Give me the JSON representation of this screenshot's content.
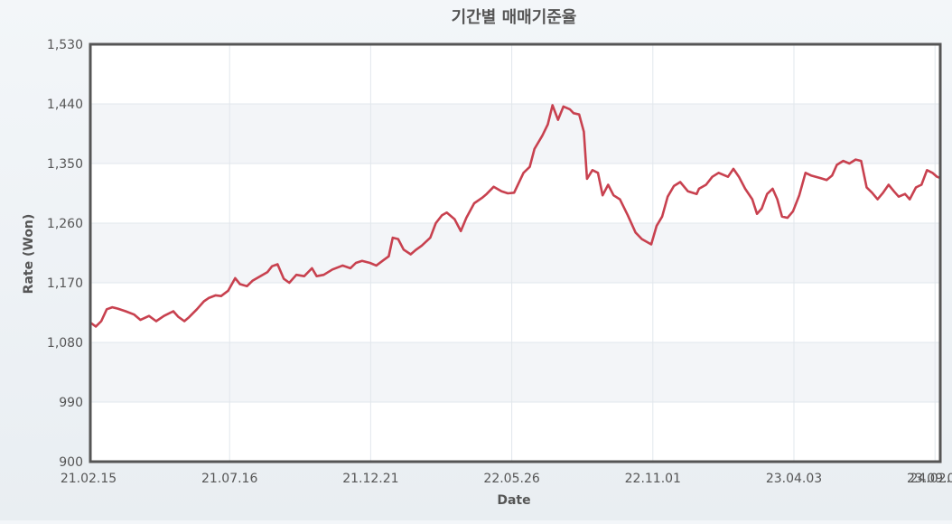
{
  "chart_data": {
    "type": "line",
    "title": "기간별 매매기준율",
    "xlabel": "Date",
    "ylabel": "Rate (Won)",
    "ylim": [
      900,
      1530
    ],
    "y_ticks": [
      "900",
      "990",
      "1,080",
      "1,170",
      "1,260",
      "1,350",
      "1,440",
      "1,530"
    ],
    "y_tick_values": [
      900,
      990,
      1080,
      1170,
      1260,
      1350,
      1440,
      1530
    ],
    "x_ticks": [
      "21.02.15",
      "21.07.16",
      "21.12.21",
      "22.05.26",
      "22.11.01",
      "23.04.03",
      "23.09.05",
      "24.02."
    ],
    "x_range": [
      "2021-02-15",
      "2024-02-05"
    ],
    "grid": true,
    "series": [
      {
        "color": "#c8414f",
        "points": [
          [
            "2021-02-15",
            1110
          ],
          [
            "2021-02-22",
            1104
          ],
          [
            "2021-03-01",
            1112
          ],
          [
            "2021-03-08",
            1130
          ],
          [
            "2021-03-15",
            1133
          ],
          [
            "2021-03-22",
            1131
          ],
          [
            "2021-04-01",
            1127
          ],
          [
            "2021-04-12",
            1122
          ],
          [
            "2021-04-20",
            1114
          ],
          [
            "2021-05-01",
            1120
          ],
          [
            "2021-05-10",
            1112
          ],
          [
            "2021-05-20",
            1120
          ],
          [
            "2021-06-01",
            1127
          ],
          [
            "2021-06-07",
            1119
          ],
          [
            "2021-06-15",
            1112
          ],
          [
            "2021-06-21",
            1118
          ],
          [
            "2021-07-01",
            1130
          ],
          [
            "2021-07-10",
            1142
          ],
          [
            "2021-07-16",
            1147
          ],
          [
            "2021-07-25",
            1151
          ],
          [
            "2021-08-01",
            1150
          ],
          [
            "2021-08-10",
            1158
          ],
          [
            "2021-08-19",
            1177
          ],
          [
            "2021-08-25",
            1168
          ],
          [
            "2021-09-03",
            1165
          ],
          [
            "2021-09-10",
            1173
          ],
          [
            "2021-09-20",
            1180
          ],
          [
            "2021-09-29",
            1186
          ],
          [
            "2021-10-05",
            1195
          ],
          [
            "2021-10-12",
            1198
          ],
          [
            "2021-10-20",
            1176
          ],
          [
            "2021-10-27",
            1170
          ],
          [
            "2021-11-05",
            1182
          ],
          [
            "2021-11-15",
            1180
          ],
          [
            "2021-11-25",
            1192
          ],
          [
            "2021-12-01",
            1180
          ],
          [
            "2021-12-10",
            1182
          ],
          [
            "2021-12-21",
            1190
          ],
          [
            "2022-01-03",
            1196
          ],
          [
            "2022-01-13",
            1192
          ],
          [
            "2022-01-20",
            1200
          ],
          [
            "2022-01-28",
            1203
          ],
          [
            "2022-02-07",
            1200
          ],
          [
            "2022-02-15",
            1196
          ],
          [
            "2022-02-24",
            1204
          ],
          [
            "2022-03-03",
            1210
          ],
          [
            "2022-03-08",
            1238
          ],
          [
            "2022-03-15",
            1236
          ],
          [
            "2022-03-22",
            1220
          ],
          [
            "2022-03-31",
            1213
          ],
          [
            "2022-04-07",
            1220
          ],
          [
            "2022-04-14",
            1226
          ],
          [
            "2022-04-25",
            1238
          ],
          [
            "2022-05-02",
            1260
          ],
          [
            "2022-05-10",
            1272
          ],
          [
            "2022-05-16",
            1276
          ],
          [
            "2022-05-26",
            1266
          ],
          [
            "2022-06-03",
            1248
          ],
          [
            "2022-06-10",
            1268
          ],
          [
            "2022-06-20",
            1290
          ],
          [
            "2022-06-30",
            1298
          ],
          [
            "2022-07-06",
            1304
          ],
          [
            "2022-07-15",
            1315
          ],
          [
            "2022-07-25",
            1308
          ],
          [
            "2022-08-02",
            1305
          ],
          [
            "2022-08-10",
            1306
          ],
          [
            "2022-08-22",
            1336
          ],
          [
            "2022-08-30",
            1345
          ],
          [
            "2022-09-05",
            1372
          ],
          [
            "2022-09-15",
            1392
          ],
          [
            "2022-09-22",
            1409
          ],
          [
            "2022-09-28",
            1438
          ],
          [
            "2022-10-05",
            1416
          ],
          [
            "2022-10-12",
            1436
          ],
          [
            "2022-10-20",
            1432
          ],
          [
            "2022-10-25",
            1426
          ],
          [
            "2022-11-01",
            1424
          ],
          [
            "2022-11-07",
            1398
          ],
          [
            "2022-11-11",
            1327
          ],
          [
            "2022-11-18",
            1340
          ],
          [
            "2022-11-25",
            1336
          ],
          [
            "2022-12-01",
            1302
          ],
          [
            "2022-12-08",
            1318
          ],
          [
            "2022-12-15",
            1302
          ],
          [
            "2022-12-23",
            1296
          ],
          [
            "2023-01-02",
            1272
          ],
          [
            "2023-01-12",
            1246
          ],
          [
            "2023-01-20",
            1236
          ],
          [
            "2023-02-01",
            1228
          ],
          [
            "2023-02-08",
            1256
          ],
          [
            "2023-02-15",
            1270
          ],
          [
            "2023-02-22",
            1300
          ],
          [
            "2023-03-02",
            1316
          ],
          [
            "2023-03-10",
            1322
          ],
          [
            "2023-03-20",
            1308
          ],
          [
            "2023-03-31",
            1304
          ],
          [
            "2023-04-03",
            1312
          ],
          [
            "2023-04-12",
            1318
          ],
          [
            "2023-04-20",
            1330
          ],
          [
            "2023-04-28",
            1336
          ],
          [
            "2023-05-10",
            1330
          ],
          [
            "2023-05-17",
            1342
          ],
          [
            "2023-05-24",
            1330
          ],
          [
            "2023-06-01",
            1312
          ],
          [
            "2023-06-10",
            1296
          ],
          [
            "2023-06-16",
            1274
          ],
          [
            "2023-06-22",
            1282
          ],
          [
            "2023-06-29",
            1304
          ],
          [
            "2023-07-06",
            1312
          ],
          [
            "2023-07-12",
            1296
          ],
          [
            "2023-07-18",
            1270
          ],
          [
            "2023-07-25",
            1268
          ],
          [
            "2023-08-01",
            1278
          ],
          [
            "2023-08-09",
            1302
          ],
          [
            "2023-08-17",
            1336
          ],
          [
            "2023-08-24",
            1332
          ],
          [
            "2023-09-05",
            1328
          ],
          [
            "2023-09-13",
            1325
          ],
          [
            "2023-09-20",
            1332
          ],
          [
            "2023-09-26",
            1348
          ],
          [
            "2023-10-04",
            1354
          ],
          [
            "2023-10-12",
            1350
          ],
          [
            "2023-10-20",
            1356
          ],
          [
            "2023-10-27",
            1354
          ],
          [
            "2023-11-03",
            1314
          ],
          [
            "2023-11-10",
            1306
          ],
          [
            "2023-11-17",
            1296
          ],
          [
            "2023-11-24",
            1306
          ],
          [
            "2023-12-01",
            1318
          ],
          [
            "2023-12-08",
            1308
          ],
          [
            "2023-12-14",
            1300
          ],
          [
            "2023-12-22",
            1304
          ],
          [
            "2023-12-28",
            1296
          ],
          [
            "2024-01-05",
            1314
          ],
          [
            "2024-01-12",
            1318
          ],
          [
            "2024-01-19",
            1340
          ],
          [
            "2024-01-26",
            1336
          ],
          [
            "2024-02-01",
            1330
          ],
          [
            "2024-02-05",
            1328
          ]
        ]
      }
    ]
  }
}
